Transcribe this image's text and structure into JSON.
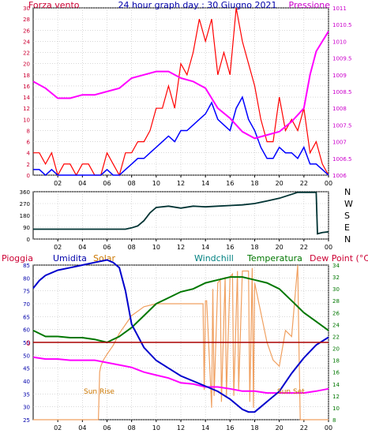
{
  "header": {
    "left_title": "Forza vento",
    "center_title": "24 hour graph day : 30 Giugno 2021",
    "right_title": "Pressione"
  },
  "labels": {
    "pioggia": "Pioggia",
    "umidita": "Umidita",
    "solar": "Solar",
    "windchill": "Windchill",
    "temperatura": "Temperatura",
    "dew_point": "Dew Point (°C)",
    "sun_rise": "Sun Rise",
    "sun_set": "Sun Set",
    "rain_zero": "0"
  },
  "colors": {
    "frame": "#000000",
    "grid": "#c0c0c0",
    "wind_gust": "#ff0000",
    "wind_avg": "#0000ff",
    "pressure": "#ff00ff",
    "direction": "#003333",
    "humidity": "#0000cc",
    "solar": "#f0a060",
    "temperature": "#007700",
    "dew_point": "#ff00ff",
    "rain": "#aa0000",
    "title_blue": "#0000aa",
    "title_red": "#cc0033",
    "windchill_teal": "#008080",
    "solar_label": "#cc7700",
    "sun_label": "#cc7700"
  },
  "chart_data": [
    {
      "type": "line",
      "name": "wind-and-pressure",
      "title": "24 hour graph day : 30 Giugno 2021",
      "x_ticks": [
        "02",
        "04",
        "06",
        "08",
        "10",
        "12",
        "14",
        "16",
        "18",
        "20",
        "22",
        "00"
      ],
      "x_range_hours": [
        0,
        24
      ],
      "ylim_left": [
        0,
        30
      ],
      "y_ticks_left": [
        "0",
        "2",
        "4",
        "6",
        "8",
        "10",
        "12",
        "14",
        "16",
        "18",
        "20",
        "22",
        "24",
        "26",
        "28",
        "30"
      ],
      "ylim_right": [
        1006,
        1011
      ],
      "y_ticks_right": [
        "1006",
        "1006.5",
        "1007",
        "1007.5",
        "1008",
        "1008.5",
        "1009",
        "1009.5",
        "1010",
        "1010.5",
        "1011"
      ],
      "series": [
        {
          "name": "Forza vento",
          "axis": "left",
          "x": [
            0,
            0.5,
            1,
            1.5,
            2,
            2.5,
            3,
            3.5,
            4,
            4.5,
            5,
            5.5,
            6,
            6.5,
            7,
            7.5,
            8,
            8.5,
            9,
            9.5,
            10,
            10.5,
            11,
            11.5,
            12,
            12.5,
            13,
            13.5,
            14,
            14.5,
            15,
            15.5,
            16,
            16.5,
            17,
            17.5,
            18,
            18.5,
            19,
            19.5,
            20,
            20.5,
            21,
            21.5,
            22,
            22.5,
            23,
            23.5,
            24
          ],
          "values": [
            4,
            4,
            2,
            4,
            0,
            2,
            2,
            0,
            2,
            2,
            0,
            0,
            4,
            2,
            0,
            4,
            4,
            6,
            6,
            8,
            12,
            12,
            16,
            12,
            20,
            18,
            22,
            28,
            24,
            28,
            18,
            22,
            18,
            30,
            24,
            20,
            16,
            10,
            6,
            6,
            14,
            8,
            10,
            8,
            12,
            4,
            6,
            2,
            0
          ]
        },
        {
          "name": "wind average",
          "axis": "left",
          "x": [
            0,
            0.5,
            1,
            1.5,
            2,
            2.5,
            3,
            3.5,
            4,
            4.5,
            5,
            5.5,
            6,
            6.5,
            7,
            7.5,
            8,
            8.5,
            9,
            9.5,
            10,
            10.5,
            11,
            11.5,
            12,
            12.5,
            13,
            13.5,
            14,
            14.5,
            15,
            15.5,
            16,
            16.5,
            17,
            17.5,
            18,
            18.5,
            19,
            19.5,
            20,
            20.5,
            21,
            21.5,
            22,
            22.5,
            23,
            23.5,
            24
          ],
          "values": [
            1,
            1,
            0,
            1,
            0,
            0,
            0,
            0,
            0,
            0,
            0,
            0,
            1,
            0,
            0,
            1,
            2,
            3,
            3,
            4,
            5,
            6,
            7,
            6,
            8,
            8,
            9,
            10,
            11,
            13,
            10,
            9,
            8,
            12,
            14,
            10,
            8,
            5,
            3,
            3,
            5,
            4,
            4,
            3,
            5,
            2,
            2,
            1,
            0
          ]
        },
        {
          "name": "Pressione",
          "axis": "right",
          "x": [
            0,
            1,
            2,
            3,
            4,
            5,
            6,
            7,
            8,
            9,
            10,
            11,
            12,
            13,
            14,
            15,
            16,
            17,
            18,
            19,
            20,
            21,
            22,
            22.5,
            23,
            23.5,
            24
          ],
          "values": [
            1008.8,
            1008.6,
            1008.3,
            1008.3,
            1008.4,
            1008.4,
            1008.5,
            1008.6,
            1008.9,
            1009.0,
            1009.1,
            1009.1,
            1008.9,
            1008.8,
            1008.6,
            1008.0,
            1007.7,
            1007.3,
            1007.1,
            1007.2,
            1007.3,
            1007.6,
            1008.0,
            1009.0,
            1009.7,
            1010.0,
            1010.3
          ]
        }
      ]
    },
    {
      "type": "line",
      "name": "wind-direction",
      "x_ticks": [
        "02",
        "04",
        "06",
        "08",
        "10",
        "12",
        "14",
        "16",
        "18",
        "20",
        "22",
        "00"
      ],
      "x_range_hours": [
        0,
        24
      ],
      "ylim": [
        0,
        360
      ],
      "y_ticks": [
        "0",
        "90",
        "180",
        "270",
        "360"
      ],
      "y_right_labels": [
        "N",
        "W",
        "S",
        "E",
        "N"
      ],
      "series": [
        {
          "name": "direction",
          "x": [
            0,
            7.5,
            8,
            8.5,
            9,
            9.5,
            10,
            11,
            12,
            13,
            14,
            15,
            16,
            17,
            18,
            19,
            20,
            21,
            21.5,
            22,
            23,
            23.1,
            23.5,
            24
          ],
          "values": [
            75,
            75,
            85,
            100,
            140,
            200,
            240,
            250,
            235,
            250,
            245,
            250,
            255,
            260,
            270,
            290,
            310,
            340,
            355,
            355,
            355,
            40,
            50,
            55
          ]
        }
      ]
    },
    {
      "type": "line",
      "name": "temperature-humidity-solar",
      "x_ticks": [
        "02",
        "04",
        "06",
        "08",
        "10",
        "12",
        "14",
        "16",
        "18",
        "20",
        "22",
        "00"
      ],
      "x_range_hours": [
        0,
        24
      ],
      "ylim_left": [
        25,
        85
      ],
      "y_ticks_left": [
        "25",
        "30",
        "35",
        "40",
        "45",
        "50",
        "55",
        "60",
        "65",
        "70",
        "75",
        "80",
        "85"
      ],
      "ylim_right": [
        8,
        34
      ],
      "y_ticks_right": [
        "8",
        "10",
        "12",
        "14",
        "16",
        "18",
        "20",
        "22",
        "24",
        "26",
        "28",
        "30",
        "32",
        "34"
      ],
      "series": [
        {
          "name": "Umidita",
          "axis": "left",
          "x": [
            0,
            0.5,
            1,
            2,
            3,
            4,
            5,
            6,
            6.5,
            7,
            7.5,
            8,
            9,
            10,
            11,
            12,
            13,
            14,
            15,
            16,
            17,
            17.5,
            18,
            18.5,
            19,
            20,
            21,
            22,
            23,
            24
          ],
          "values": [
            76,
            79,
            81,
            83,
            84,
            85,
            86,
            87,
            86,
            84,
            75,
            62,
            53,
            48,
            45,
            42,
            40,
            38,
            36,
            33,
            29,
            28,
            28,
            30,
            32,
            36,
            43,
            49,
            54,
            57
          ]
        },
        {
          "name": "Temperatura",
          "axis": "right",
          "x": [
            0,
            1,
            2,
            3,
            4,
            5,
            6,
            7,
            8,
            9,
            10,
            11,
            12,
            13,
            14,
            15,
            16,
            17,
            18,
            19,
            20,
            21,
            22,
            23,
            24
          ],
          "values": [
            23,
            22,
            22,
            21.8,
            21.8,
            21.5,
            21,
            22,
            23.5,
            25.5,
            27.5,
            28.5,
            29.5,
            30,
            31,
            31.5,
            32,
            32,
            31.5,
            31,
            30,
            28,
            26,
            24.5,
            23
          ]
        },
        {
          "name": "Dew Point",
          "axis": "right",
          "x": [
            0,
            1,
            2,
            3,
            4,
            5,
            6,
            7,
            8,
            9,
            10,
            11,
            12,
            13,
            14,
            15,
            16,
            17,
            18,
            19,
            20,
            21,
            22,
            23,
            24
          ],
          "values": [
            18.5,
            18.2,
            18.2,
            18,
            18,
            18,
            17.6,
            17.2,
            16.8,
            16,
            15.5,
            15,
            14.2,
            14,
            13.5,
            13.5,
            13.2,
            12.8,
            12.8,
            12.5,
            12.5,
            12.5,
            12.5,
            12.8,
            13.2
          ]
        },
        {
          "name": "Solar",
          "axis": "right",
          "x": [
            0,
            5.3,
            5.4,
            5.5,
            5.7,
            6,
            6.5,
            7,
            7.5,
            8,
            9,
            10,
            11,
            12,
            13,
            13.8,
            13.9,
            14.0,
            14.1,
            14.5,
            14.6,
            14.7,
            15,
            15.2,
            15.3,
            15.6,
            15.7,
            16,
            16.2,
            16.3,
            16.6,
            16.7,
            17,
            17.5,
            17.6,
            17.8,
            17.9,
            18,
            18.5,
            19,
            19.5,
            20,
            20.5,
            21,
            21.5,
            21.6,
            21.7,
            22,
            24
          ],
          "values": [
            8,
            8,
            16,
            17,
            18,
            19,
            20.5,
            22.5,
            24,
            25.5,
            27,
            27.5,
            27.5,
            27.5,
            27.5,
            27.5,
            13,
            28,
            28,
            10,
            30,
            12,
            31,
            31.5,
            11,
            32,
            12,
            32,
            32.5,
            12,
            33,
            13,
            33,
            33,
            11,
            33.5,
            10,
            31,
            26,
            21,
            18,
            17,
            23,
            22,
            34,
            20,
            8,
            8,
            8
          ]
        },
        {
          "name": "Pioggia",
          "axis": "rain",
          "x": [
            0,
            24
          ],
          "values": [
            0,
            0
          ]
        }
      ]
    }
  ]
}
